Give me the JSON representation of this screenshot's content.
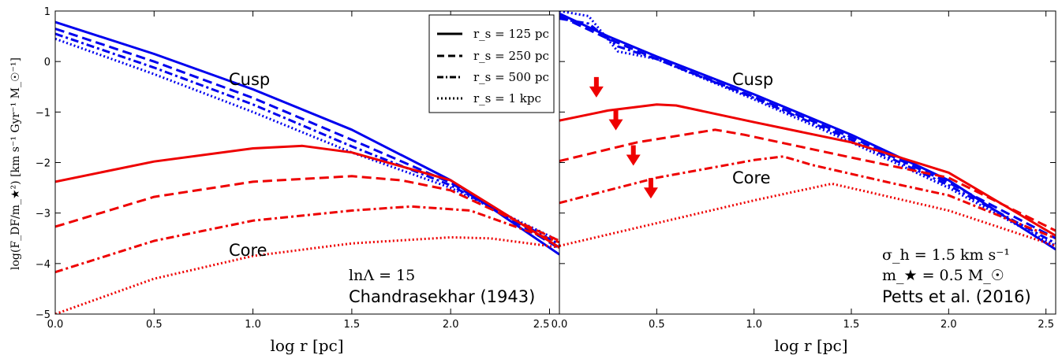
{
  "chart_data": [
    {
      "panel": "left",
      "type": "line",
      "xlabel": "log r [pc]",
      "ylabel": "log(F_DF/m_★²) [km s⁻¹ Gyr⁻¹ M_☉⁻¹]",
      "xlim": [
        0.0,
        2.55
      ],
      "ylim": [
        -5,
        1
      ],
      "xticks": [
        "0.0",
        "0.5",
        "1.0",
        "1.5",
        "2.0",
        "2.5"
      ],
      "yticks": [
        "1",
        "0",
        "−1",
        "−2",
        "−3",
        "−4",
        "−5"
      ],
      "annotations": {
        "cusp": "Cusp",
        "core": "Core",
        "lnlambda": "lnΛ = 15",
        "reference": "Chandrasekhar (1943)"
      },
      "legend": {
        "position": "top-right",
        "entries": [
          "r_s = 125 pc",
          "r_s = 250 pc",
          "r_s = 500 pc",
          "r_s = 1 kpc"
        ]
      },
      "series": [
        {
          "group": "cusp",
          "color": "#0000ee",
          "style": "solid",
          "x": [
            0,
            0.5,
            1.0,
            1.5,
            2.0,
            2.55
          ],
          "y": [
            0.78,
            0.15,
            -0.55,
            -1.35,
            -2.35,
            -3.82
          ]
        },
        {
          "group": "cusp",
          "color": "#0000ee",
          "style": "dashed",
          "x": [
            0,
            0.5,
            1.0,
            1.5,
            2.0,
            2.55
          ],
          "y": [
            0.65,
            0.0,
            -0.72,
            -1.55,
            -2.4,
            -3.7
          ]
        },
        {
          "group": "cusp",
          "color": "#0000ee",
          "style": "dashdot",
          "x": [
            0,
            0.5,
            1.0,
            1.5,
            2.0,
            2.55
          ],
          "y": [
            0.55,
            -0.12,
            -0.85,
            -1.68,
            -2.45,
            -3.62
          ]
        },
        {
          "group": "cusp",
          "color": "#0000ee",
          "style": "dotted",
          "x": [
            0,
            0.5,
            1.0,
            1.5,
            2.0,
            2.55
          ],
          "y": [
            0.45,
            -0.25,
            -1.0,
            -1.8,
            -2.5,
            -3.55
          ]
        },
        {
          "group": "core",
          "color": "#ee0000",
          "style": "solid",
          "x": [
            0,
            0.5,
            1.0,
            1.25,
            1.5,
            2.0,
            2.55
          ],
          "y": [
            -2.38,
            -1.98,
            -1.72,
            -1.67,
            -1.8,
            -2.35,
            -3.68
          ]
        },
        {
          "group": "core",
          "color": "#ee0000",
          "style": "dashed",
          "x": [
            0,
            0.5,
            1.0,
            1.5,
            1.75,
            2.0,
            2.55
          ],
          "y": [
            -3.27,
            -2.68,
            -2.38,
            -2.27,
            -2.35,
            -2.55,
            -3.55
          ]
        },
        {
          "group": "core",
          "color": "#ee0000",
          "style": "dashdot",
          "x": [
            0,
            0.5,
            1.0,
            1.5,
            1.8,
            2.1,
            2.55
          ],
          "y": [
            -4.17,
            -3.55,
            -3.15,
            -2.95,
            -2.87,
            -2.95,
            -3.58
          ]
        },
        {
          "group": "core",
          "color": "#ee0000",
          "style": "dotted",
          "x": [
            0,
            0.5,
            1.0,
            1.5,
            2.0,
            2.2,
            2.55
          ],
          "y": [
            -5.0,
            -4.3,
            -3.85,
            -3.6,
            -3.48,
            -3.5,
            -3.68
          ]
        }
      ]
    },
    {
      "panel": "right",
      "type": "line",
      "xlabel": "log r [pc]",
      "xlim": [
        0.0,
        2.55
      ],
      "ylim": [
        -5,
        1
      ],
      "xticks": [
        "0.0",
        "0.5",
        "1.0",
        "1.5",
        "2.0",
        "2.5"
      ],
      "annotations": {
        "cusp": "Cusp",
        "core": "Core",
        "sigma": "σ_h = 1.5 km s⁻¹",
        "mass": "m_★ = 0.5 M_☉",
        "reference": "Petts et al. (2016)"
      },
      "arrows": [
        {
          "x": 0.19,
          "y": -0.65
        },
        {
          "x": 0.29,
          "y": -1.3
        },
        {
          "x": 0.38,
          "y": -2.0
        },
        {
          "x": 0.47,
          "y": -2.65
        }
      ],
      "series": [
        {
          "group": "cusp",
          "color": "#0000ee",
          "style": "solid",
          "x": [
            0,
            0.25,
            0.5,
            1.0,
            1.5,
            2.0,
            2.55
          ],
          "y": [
            0.95,
            0.5,
            0.1,
            -0.65,
            -1.45,
            -2.35,
            -3.72
          ]
        },
        {
          "group": "cusp",
          "color": "#0000ee",
          "style": "dashed",
          "x": [
            0,
            0.25,
            0.5,
            1.0,
            1.5,
            2.0,
            2.55
          ],
          "y": [
            0.9,
            0.45,
            0.05,
            -0.7,
            -1.5,
            -2.4,
            -3.5
          ]
        },
        {
          "group": "cusp",
          "color": "#0000ee",
          "style": "dashdot",
          "x": [
            0,
            0.15,
            0.3,
            0.5,
            1.0,
            1.5,
            2.0,
            2.55
          ],
          "y": [
            0.85,
            0.75,
            0.3,
            0.05,
            -0.72,
            -1.55,
            -2.45,
            -3.6
          ]
        },
        {
          "group": "cusp",
          "color": "#0000ee",
          "style": "dotted",
          "x": [
            0,
            0.15,
            0.3,
            0.5,
            1.0,
            1.5,
            2.0,
            2.55
          ],
          "y": [
            1.0,
            0.9,
            0.2,
            0.05,
            -0.75,
            -1.6,
            -2.5,
            -3.65
          ]
        },
        {
          "group": "core",
          "color": "#ee0000",
          "style": "solid",
          "x": [
            0,
            0.25,
            0.5,
            0.6,
            1.0,
            1.5,
            2.0,
            2.55
          ],
          "y": [
            -1.17,
            -0.97,
            -0.85,
            -0.87,
            -1.2,
            -1.6,
            -2.2,
            -3.45
          ]
        },
        {
          "group": "core",
          "color": "#ee0000",
          "style": "dashed",
          "x": [
            0,
            0.4,
            0.8,
            0.95,
            1.5,
            2.0,
            2.55
          ],
          "y": [
            -1.97,
            -1.6,
            -1.35,
            -1.45,
            -1.9,
            -2.3,
            -3.35
          ]
        },
        {
          "group": "core",
          "color": "#ee0000",
          "style": "dashdot",
          "x": [
            0,
            0.5,
            1.0,
            1.15,
            1.3,
            1.7,
            2.0,
            2.55
          ],
          "y": [
            -2.8,
            -2.3,
            -1.95,
            -1.88,
            -2.05,
            -2.4,
            -2.65,
            -3.5
          ]
        },
        {
          "group": "core",
          "color": "#ee0000",
          "style": "dotted",
          "x": [
            0,
            0.5,
            1.0,
            1.4,
            1.55,
            2.0,
            2.55
          ],
          "y": [
            -3.65,
            -3.2,
            -2.75,
            -2.42,
            -2.55,
            -2.95,
            -3.65
          ]
        }
      ]
    }
  ]
}
